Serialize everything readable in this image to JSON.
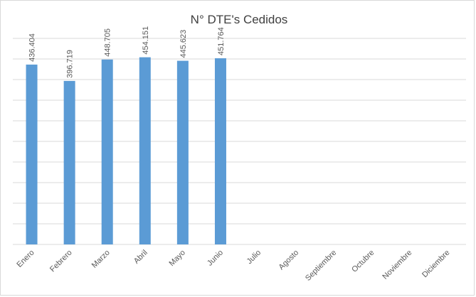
{
  "chart_data": {
    "type": "bar",
    "title": "N° DTE's Cedidos",
    "categories": [
      "Enero",
      "Febrero",
      "Marzo",
      "Abril",
      "Mayo",
      "Junio",
      "Julio",
      "Agosto",
      "Septiembre",
      "Octubre",
      "Noviembre",
      "Diciembre"
    ],
    "values": [
      436404,
      396719,
      448705,
      454151,
      445623,
      451764,
      null,
      null,
      null,
      null,
      null,
      null
    ],
    "value_labels": [
      "436.404",
      "396.719",
      "448.705",
      "454.151",
      "445.623",
      "451.764",
      null,
      null,
      null,
      null,
      null,
      null
    ],
    "color": "#5b9bd5",
    "ylim": [
      0,
      500000
    ],
    "yticks": [
      0,
      50000,
      100000,
      150000,
      200000,
      250000,
      300000,
      350000,
      400000,
      450000,
      500000
    ],
    "show_ytick_labels": false,
    "grid": true
  }
}
